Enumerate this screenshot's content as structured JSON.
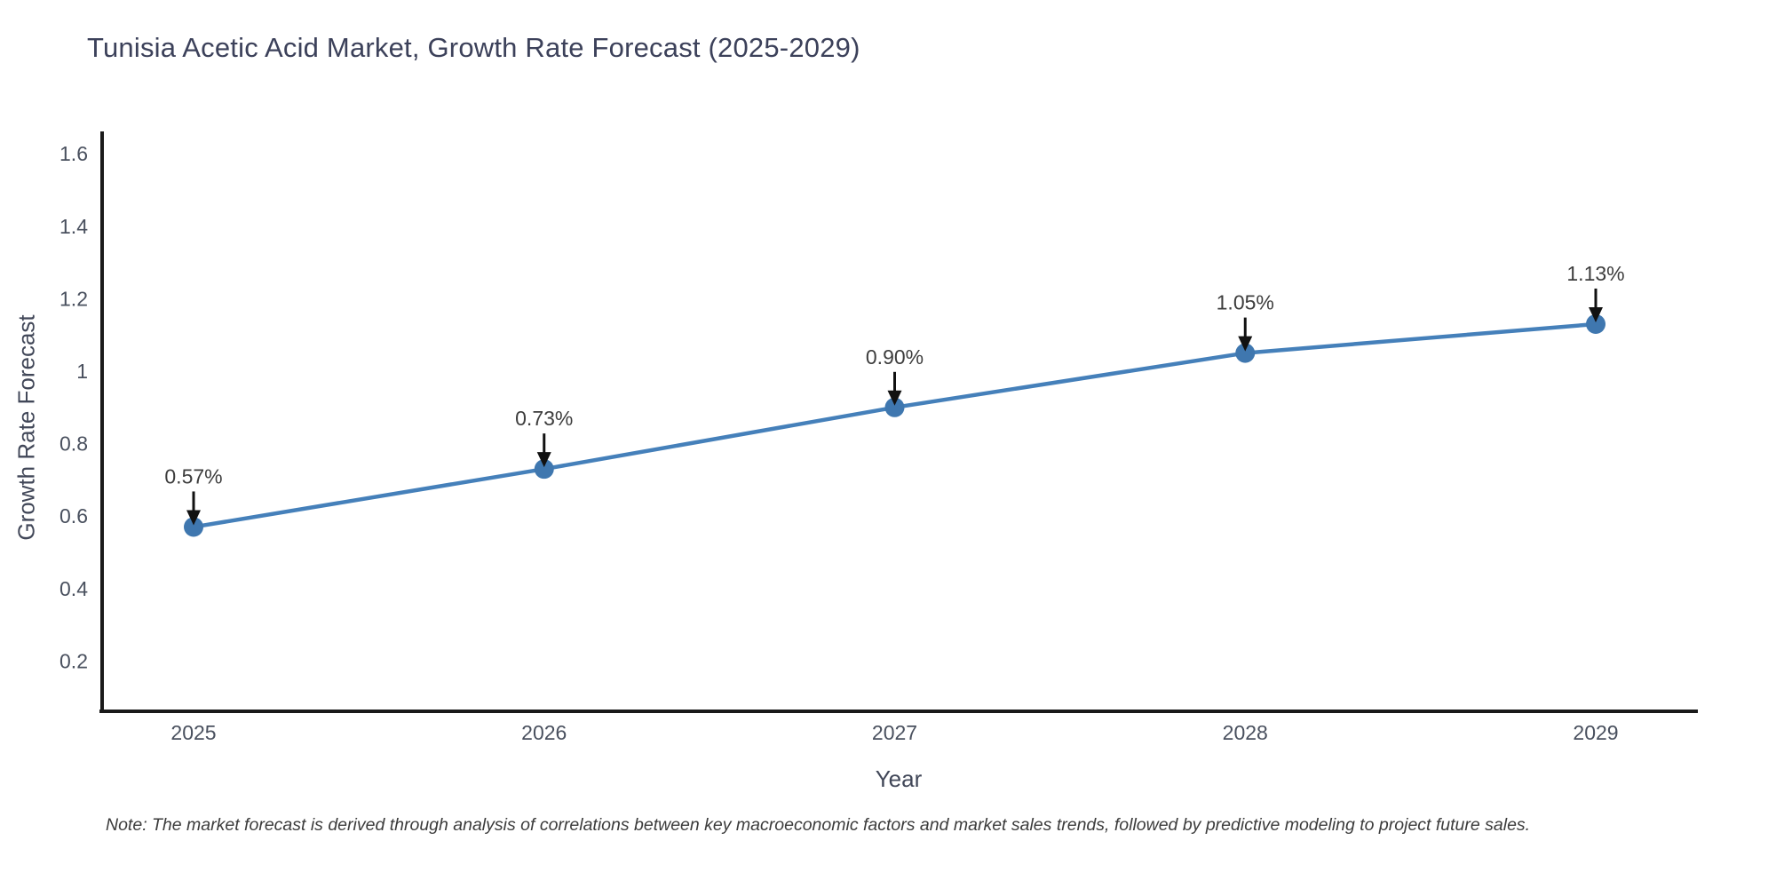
{
  "chart": {
    "title": "Tunisia Acetic Acid Market, Growth Rate Forecast (2025-2029)",
    "xlabel": "Year",
    "ylabel": "Growth Rate Forecast",
    "note": "Note: The market forecast is derived through analysis of correlations between key macroeconomic factors and market sales trends, followed by predictive modeling to project future sales."
  },
  "chart_data": {
    "type": "line",
    "title": "Tunisia Acetic Acid Market, Growth Rate Forecast (2025-2029)",
    "xlabel": "Year",
    "ylabel": "Growth Rate Forecast",
    "categories": [
      "2025",
      "2026",
      "2027",
      "2028",
      "2029"
    ],
    "series": [
      {
        "name": "Growth Rate Forecast",
        "values": [
          0.57,
          0.73,
          0.9,
          1.05,
          1.13
        ],
        "point_labels": [
          "0.57%",
          "0.73%",
          "0.90%",
          "1.05%",
          "1.13%"
        ]
      }
    ],
    "ylim": [
      0.06,
      1.66
    ],
    "yticks": [
      0.2,
      0.4,
      0.6,
      0.8,
      1,
      1.2,
      1.4,
      1.6
    ],
    "ytick_labels": [
      "0.2",
      "0.4",
      "0.6",
      "0.8",
      "1",
      "1.2",
      "1.4",
      "1.6"
    ],
    "grid": false,
    "legend_position": "none",
    "annotations": "value labels with down arrows above each point",
    "colors": {
      "line": "#4580ba",
      "marker": "#3f77af",
      "arrow": "#111111",
      "axis": "#1a1a1a",
      "title_text": "#3c415a",
      "tick_text": "#49505e",
      "label_text": "#3d3d3d"
    },
    "note": "Note: The market forecast is derived through analysis of correlations between key macroeconomic factors and market sales trends, followed by predictive modeling to project future sales."
  }
}
